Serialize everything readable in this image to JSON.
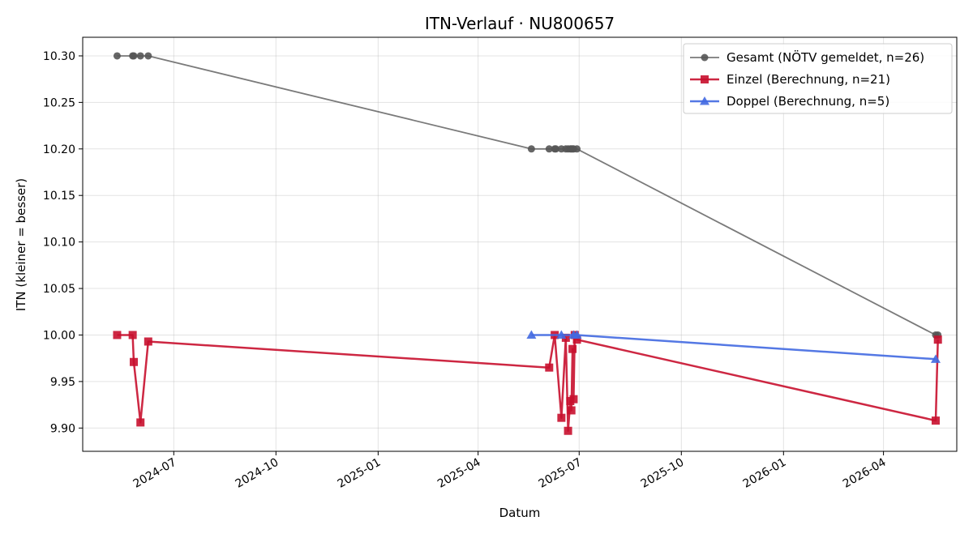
{
  "chart_data": {
    "type": "line",
    "title": "ITN-Verlauf · NU800657",
    "xlabel": "Datum",
    "ylabel": "ITN  (kleiner = besser)",
    "x_type": "date",
    "xlim": [
      "2024-04-10",
      "2026-06-06"
    ],
    "ylim": [
      9.875,
      10.32
    ],
    "x_ticks": [
      "2024-07-01",
      "2024-10-01",
      "2025-01-01",
      "2025-04-01",
      "2025-07-01",
      "2025-10-01",
      "2026-01-01",
      "2026-04-01"
    ],
    "x_tick_labels": [
      "2024-07",
      "2024-10",
      "2025-01",
      "2025-04",
      "2025-07",
      "2025-10",
      "2026-01",
      "2026-04"
    ],
    "y_ticks": [
      9.9,
      9.95,
      10.0,
      10.05,
      10.1,
      10.15,
      10.2,
      10.25,
      10.3
    ],
    "y_tick_labels": [
      "9.90",
      "9.95",
      "10.00",
      "10.05",
      "10.10",
      "10.15",
      "10.20",
      "10.25",
      "10.30"
    ],
    "grid": true,
    "legend": "top-right",
    "series": [
      {
        "name": "Gesamt (NÖTV gemeldet, n=26)",
        "color": "#555555",
        "marker": "circle",
        "x": [
          "2024-05-11",
          "2024-05-25",
          "2024-05-26",
          "2024-06-01",
          "2024-06-08",
          "2025-05-19",
          "2025-06-04",
          "2025-06-09",
          "2025-06-10",
          "2025-06-15",
          "2025-06-19",
          "2025-06-21",
          "2025-06-23",
          "2025-06-24",
          "2025-06-25",
          "2025-06-26",
          "2025-06-29",
          "2026-05-18",
          "2026-05-20"
        ],
        "y": [
          10.3,
          10.3,
          10.3,
          10.3,
          10.3,
          10.2,
          10.2,
          10.2,
          10.2,
          10.2,
          10.2,
          10.2,
          10.2,
          10.2,
          10.2,
          10.2,
          10.2,
          10.0,
          10.0
        ]
      },
      {
        "name": "Einzel (Berechnung, n=21)",
        "color": "#c8102e",
        "marker": "square",
        "x": [
          "2024-05-11",
          "2024-05-25",
          "2024-05-26",
          "2024-06-01",
          "2024-06-08",
          "2025-06-04",
          "2025-06-09",
          "2025-06-15",
          "2025-06-19",
          "2025-06-21",
          "2025-06-23",
          "2025-06-24",
          "2025-06-25",
          "2025-06-26",
          "2025-06-27",
          "2025-06-29",
          "2026-05-18",
          "2026-05-20"
        ],
        "y": [
          10.0,
          10.0,
          9.971,
          9.906,
          9.993,
          9.965,
          10.0,
          9.911,
          9.997,
          9.897,
          9.929,
          9.919,
          9.985,
          9.931,
          10.0,
          9.995,
          9.908,
          9.995
        ]
      },
      {
        "name": "Doppel (Berechnung, n=5)",
        "color": "#4169e1",
        "marker": "triangle",
        "x": [
          "2025-05-19",
          "2025-06-15",
          "2025-06-26",
          "2025-06-29",
          "2026-05-18"
        ],
        "y": [
          10.0,
          10.0,
          10.0,
          10.0,
          9.974
        ]
      }
    ]
  }
}
